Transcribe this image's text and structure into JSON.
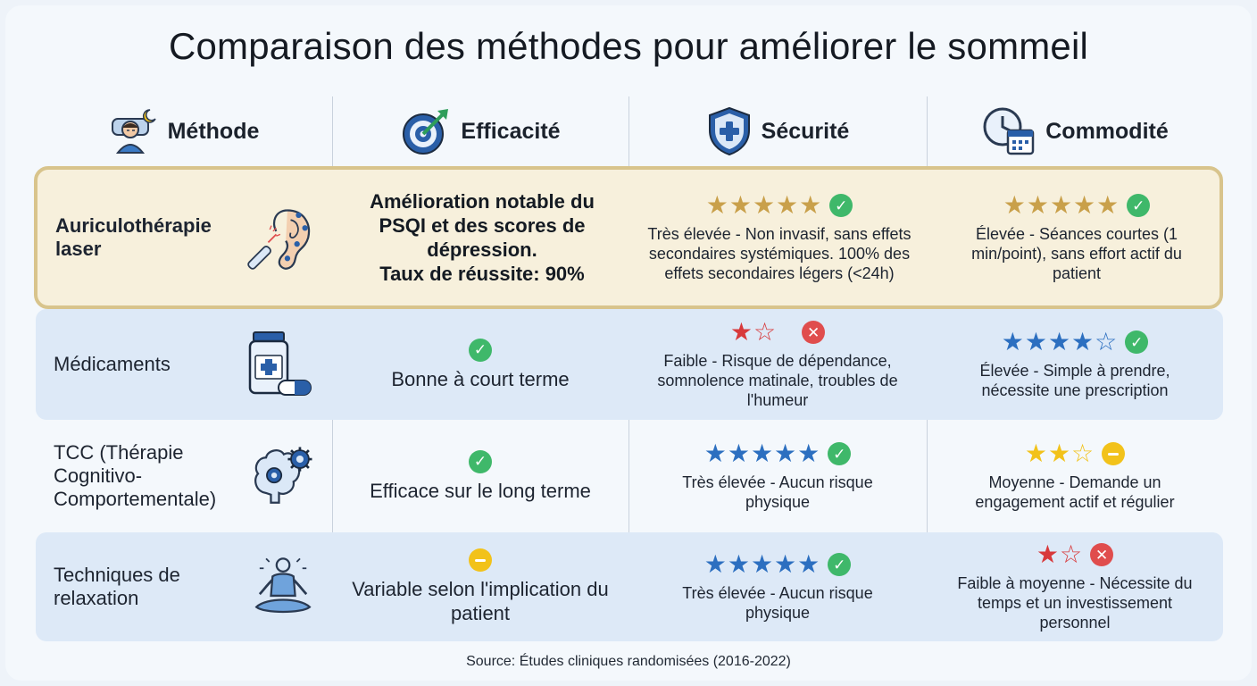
{
  "title": "Comparaison des méthodes pour améliorer le sommeil",
  "headers": {
    "method": "Méthode",
    "efficacy": "Efficacité",
    "safety": "Sécurité",
    "convenience": "Commodité"
  },
  "icons": {
    "method": "sleeping-person-icon",
    "efficacy": "target-arrow-icon",
    "safety": "shield-cross-icon",
    "convenience": "clock-calendar-icon"
  },
  "colors": {
    "gold_star": "#c9a04a",
    "blue_star": "#2c6fc0",
    "red_star": "#d8393b",
    "yellow_star": "#f2c21a",
    "check": "#3fb86a",
    "cross": "#e04d4d",
    "neutral": "#f2c21a"
  },
  "rows": [
    {
      "method": "Auriculothérapie laser",
      "method_icon": "ear-laser-icon",
      "efficacy_lines": [
        "Amélioration notable du PSQI et des scores de dépression.",
        "Taux de réussite: 90%"
      ],
      "efficacy_status": "",
      "safety": {
        "stars": 5,
        "max": 5,
        "status": "check",
        "color": "gold",
        "text": "Très élevée - Non invasif, sans effets secondaires systémiques. 100% des effets secondaires légers (<24h)"
      },
      "convenience": {
        "stars": 5,
        "max": 5,
        "status": "check",
        "color": "gold",
        "text": "Élevée - Séances courtes (1 min/point), sans effort actif du patient"
      }
    },
    {
      "method": "Médicaments",
      "method_icon": "pill-bottle-icon",
      "efficacy_text": "Bonne à court terme",
      "efficacy_status": "check",
      "safety": {
        "stars": 1,
        "max": 2,
        "status": "cross",
        "color": "red",
        "text": "Faible - Risque de dépendance, somnolence matinale, troubles de l'humeur"
      },
      "convenience": {
        "stars": 4,
        "max": 5,
        "status": "check",
        "color": "blue",
        "text": "Élevée - Simple à prendre, nécessite une prescription"
      }
    },
    {
      "method": "TCC (Thérapie Cognitivo-Comportementale)",
      "method_icon": "brain-gears-icon",
      "efficacy_text": "Efficace sur le long terme",
      "efficacy_status": "check",
      "safety": {
        "stars": 5,
        "max": 5,
        "status": "check",
        "color": "blue",
        "text": "Très élevée - Aucun risque physique"
      },
      "convenience": {
        "stars": 2,
        "max": 3,
        "status": "neutral",
        "color": "yellow",
        "text": "Moyenne - Demande un engagement actif et régulier"
      }
    },
    {
      "method": "Techniques de relaxation",
      "method_icon": "meditation-icon",
      "efficacy_text": "Variable selon l'implication du patient",
      "efficacy_status": "neutral",
      "safety": {
        "stars": 5,
        "max": 5,
        "status": "check",
        "color": "blue",
        "text": "Très élevée - Aucun risque physique"
      },
      "convenience": {
        "stars": 1,
        "max": 2,
        "status": "cross",
        "color": "red",
        "text": "Faible à moyenne - Nécessite du temps et un investissement personnel"
      }
    }
  ],
  "source": "Source: Études cliniques randomisées (2016-2022)"
}
